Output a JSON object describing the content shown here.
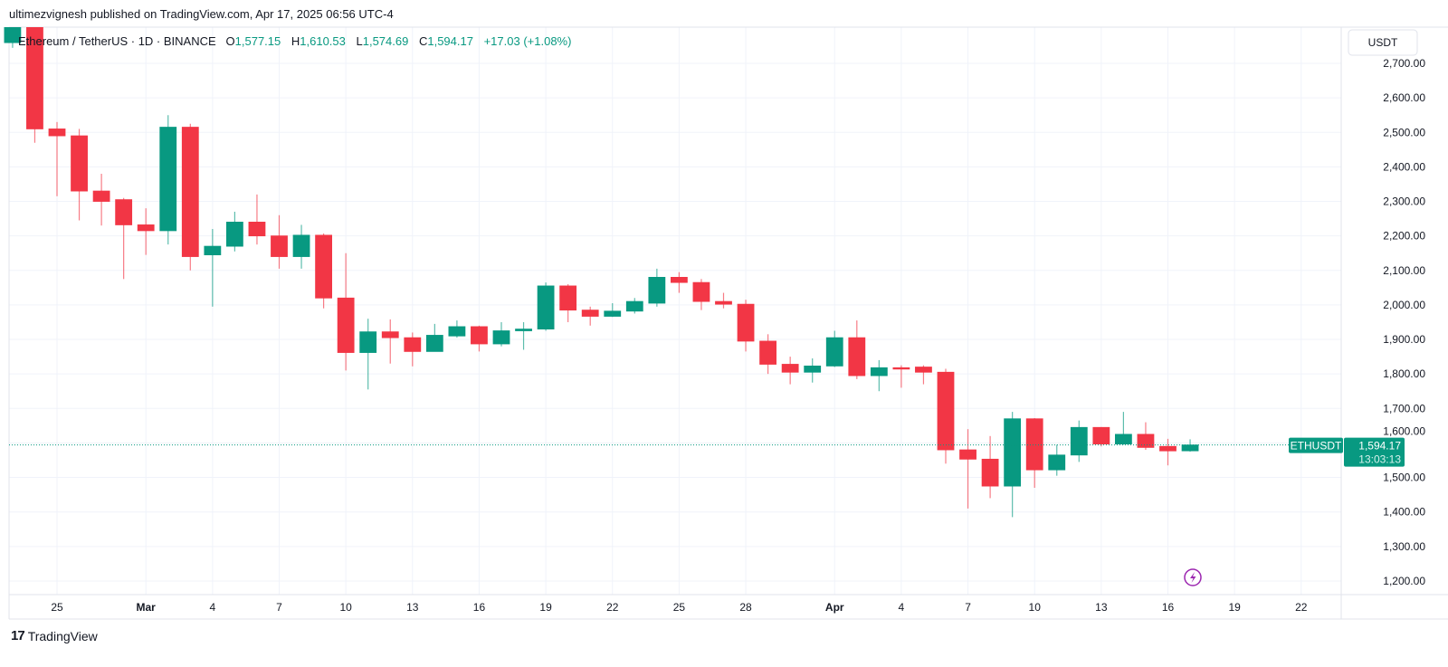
{
  "header": {
    "published": "ultimezvignesh published on TradingView.com, Apr 17, 2025 06:56 UTC-4"
  },
  "legend": {
    "symbol": "Ethereum / TetherUS · 1D · BINANCE",
    "o_label": "O",
    "o": "1,577.15",
    "h_label": "H",
    "h": "1,610.53",
    "l_label": "L",
    "l": "1,574.69",
    "c_label": "C",
    "c": "1,594.17",
    "change": "+17.03 (+1.08%)"
  },
  "footer": {
    "brand": "TradingView"
  },
  "chart_data": {
    "type": "candlestick",
    "currency_label": "USDT",
    "ylim": [
      1160,
      2820
    ],
    "y_ticks": [
      1200,
      1300,
      1400,
      1500,
      1600,
      1700,
      1800,
      1900,
      2000,
      2100,
      2200,
      2300,
      2400,
      2500,
      2600,
      2700
    ],
    "y_tick_labels": [
      "1,200.00",
      "1,300.00",
      "1,400.00",
      "1,500.00",
      "1,600.00",
      "1,700.00",
      "1,800.00",
      "1,900.00",
      "2,000.00",
      "2,100.00",
      "2,200.00",
      "2,300.00",
      "2,400.00",
      "2,500.00",
      "2,600.00",
      "2,700.00"
    ],
    "x_ticks": [
      {
        "date": "2025-02-25",
        "label": "25"
      },
      {
        "date": "2025-03-01",
        "label": "Mar"
      },
      {
        "date": "2025-03-04",
        "label": "4"
      },
      {
        "date": "2025-03-07",
        "label": "7"
      },
      {
        "date": "2025-03-10",
        "label": "10"
      },
      {
        "date": "2025-03-13",
        "label": "13"
      },
      {
        "date": "2025-03-16",
        "label": "16"
      },
      {
        "date": "2025-03-19",
        "label": "19"
      },
      {
        "date": "2025-03-22",
        "label": "22"
      },
      {
        "date": "2025-03-25",
        "label": "25"
      },
      {
        "date": "2025-03-28",
        "label": "28"
      },
      {
        "date": "2025-04-01",
        "label": "Apr"
      },
      {
        "date": "2025-04-04",
        "label": "4"
      },
      {
        "date": "2025-04-07",
        "label": "7"
      },
      {
        "date": "2025-04-10",
        "label": "10"
      },
      {
        "date": "2025-04-13",
        "label": "13"
      },
      {
        "date": "2025-04-16",
        "label": "16"
      },
      {
        "date": "2025-04-19",
        "label": "19"
      },
      {
        "date": "2025-04-22",
        "label": "22"
      }
    ],
    "x_range": [
      "2025-02-22",
      "2025-04-23"
    ],
    "grid": true,
    "up_color": "#089981",
    "down_color": "#F23645",
    "last_price": {
      "symbol": "ETHUSDT",
      "price": 1594.17,
      "price_label": "1,594.17",
      "countdown": "13:03:13"
    },
    "candles": [
      {
        "d": "2025-02-23",
        "o": 2760,
        "h": 2855,
        "l": 2745,
        "c": 2820
      },
      {
        "d": "2025-02-24",
        "o": 2820,
        "h": 2830,
        "l": 2470,
        "c": 2510
      },
      {
        "d": "2025-02-25",
        "o": 2510,
        "h": 2530,
        "l": 2315,
        "c": 2490
      },
      {
        "d": "2025-02-26",
        "o": 2490,
        "h": 2510,
        "l": 2245,
        "c": 2330
      },
      {
        "d": "2025-02-27",
        "o": 2330,
        "h": 2380,
        "l": 2230,
        "c": 2300
      },
      {
        "d": "2025-02-28",
        "o": 2305,
        "h": 2310,
        "l": 2075,
        "c": 2232
      },
      {
        "d": "2025-03-01",
        "o": 2232,
        "h": 2280,
        "l": 2145,
        "c": 2215
      },
      {
        "d": "2025-03-02",
        "o": 2215,
        "h": 2550,
        "l": 2175,
        "c": 2515
      },
      {
        "d": "2025-03-03",
        "o": 2515,
        "h": 2525,
        "l": 2100,
        "c": 2140
      },
      {
        "d": "2025-03-04",
        "o": 2145,
        "h": 2220,
        "l": 1995,
        "c": 2170
      },
      {
        "d": "2025-03-05",
        "o": 2170,
        "h": 2270,
        "l": 2155,
        "c": 2240
      },
      {
        "d": "2025-03-06",
        "o": 2240,
        "h": 2320,
        "l": 2175,
        "c": 2200
      },
      {
        "d": "2025-03-07",
        "o": 2200,
        "h": 2260,
        "l": 2105,
        "c": 2140
      },
      {
        "d": "2025-03-08",
        "o": 2140,
        "h": 2232,
        "l": 2105,
        "c": 2202
      },
      {
        "d": "2025-03-09",
        "o": 2202,
        "h": 2207,
        "l": 1990,
        "c": 2020
      },
      {
        "d": "2025-03-10",
        "o": 2020,
        "h": 2150,
        "l": 1810,
        "c": 1862
      },
      {
        "d": "2025-03-11",
        "o": 1862,
        "h": 1960,
        "l": 1755,
        "c": 1922
      },
      {
        "d": "2025-03-12",
        "o": 1922,
        "h": 1958,
        "l": 1830,
        "c": 1905
      },
      {
        "d": "2025-03-13",
        "o": 1905,
        "h": 1920,
        "l": 1822,
        "c": 1865
      },
      {
        "d": "2025-03-14",
        "o": 1865,
        "h": 1945,
        "l": 1865,
        "c": 1912
      },
      {
        "d": "2025-03-15",
        "o": 1910,
        "h": 1955,
        "l": 1905,
        "c": 1937
      },
      {
        "d": "2025-03-16",
        "o": 1937,
        "h": 1940,
        "l": 1865,
        "c": 1887
      },
      {
        "d": "2025-03-17",
        "o": 1887,
        "h": 1950,
        "l": 1880,
        "c": 1925
      },
      {
        "d": "2025-03-18",
        "o": 1925,
        "h": 1950,
        "l": 1870,
        "c": 1930
      },
      {
        "d": "2025-03-19",
        "o": 1930,
        "h": 2065,
        "l": 1925,
        "c": 2055
      },
      {
        "d": "2025-03-20",
        "o": 2055,
        "h": 2060,
        "l": 1950,
        "c": 1985
      },
      {
        "d": "2025-03-21",
        "o": 1985,
        "h": 1995,
        "l": 1940,
        "c": 1967
      },
      {
        "d": "2025-03-22",
        "o": 1967,
        "h": 2005,
        "l": 1965,
        "c": 1982
      },
      {
        "d": "2025-03-23",
        "o": 1982,
        "h": 2020,
        "l": 1975,
        "c": 2010
      },
      {
        "d": "2025-03-24",
        "o": 2005,
        "h": 2105,
        "l": 1995,
        "c": 2080
      },
      {
        "d": "2025-03-25",
        "o": 2080,
        "h": 2095,
        "l": 2035,
        "c": 2065
      },
      {
        "d": "2025-03-26",
        "o": 2065,
        "h": 2075,
        "l": 1985,
        "c": 2010
      },
      {
        "d": "2025-03-27",
        "o": 2010,
        "h": 2035,
        "l": 1990,
        "c": 2002
      },
      {
        "d": "2025-03-28",
        "o": 2002,
        "h": 2015,
        "l": 1865,
        "c": 1895
      },
      {
        "d": "2025-03-29",
        "o": 1895,
        "h": 1915,
        "l": 1800,
        "c": 1828
      },
      {
        "d": "2025-03-30",
        "o": 1828,
        "h": 1850,
        "l": 1770,
        "c": 1805
      },
      {
        "d": "2025-03-31",
        "o": 1805,
        "h": 1845,
        "l": 1775,
        "c": 1823
      },
      {
        "d": "2025-04-01",
        "o": 1823,
        "h": 1925,
        "l": 1820,
        "c": 1905
      },
      {
        "d": "2025-04-02",
        "o": 1905,
        "h": 1955,
        "l": 1785,
        "c": 1795
      },
      {
        "d": "2025-04-03",
        "o": 1795,
        "h": 1840,
        "l": 1750,
        "c": 1818
      },
      {
        "d": "2025-04-04",
        "o": 1818,
        "h": 1825,
        "l": 1760,
        "c": 1814
      },
      {
        "d": "2025-04-05",
        "o": 1820,
        "h": 1825,
        "l": 1770,
        "c": 1805
      },
      {
        "d": "2025-04-06",
        "o": 1805,
        "h": 1815,
        "l": 1540,
        "c": 1580
      },
      {
        "d": "2025-04-07",
        "o": 1580,
        "h": 1640,
        "l": 1410,
        "c": 1553
      },
      {
        "d": "2025-04-08",
        "o": 1553,
        "h": 1620,
        "l": 1440,
        "c": 1475
      },
      {
        "d": "2025-04-09",
        "o": 1475,
        "h": 1690,
        "l": 1385,
        "c": 1670
      },
      {
        "d": "2025-04-10",
        "o": 1670,
        "h": 1672,
        "l": 1470,
        "c": 1522
      },
      {
        "d": "2025-04-11",
        "o": 1522,
        "h": 1595,
        "l": 1505,
        "c": 1565
      },
      {
        "d": "2025-04-12",
        "o": 1565,
        "h": 1665,
        "l": 1545,
        "c": 1645
      },
      {
        "d": "2025-04-13",
        "o": 1645,
        "h": 1646,
        "l": 1590,
        "c": 1597
      },
      {
        "d": "2025-04-14",
        "o": 1597,
        "h": 1690,
        "l": 1595,
        "c": 1625
      },
      {
        "d": "2025-04-15",
        "o": 1625,
        "h": 1660,
        "l": 1580,
        "c": 1587
      },
      {
        "d": "2025-04-16",
        "o": 1590,
        "h": 1612,
        "l": 1535,
        "c": 1577
      },
      {
        "d": "2025-04-17",
        "o": 1577.15,
        "h": 1610.53,
        "l": 1574.69,
        "c": 1594.17
      }
    ]
  }
}
